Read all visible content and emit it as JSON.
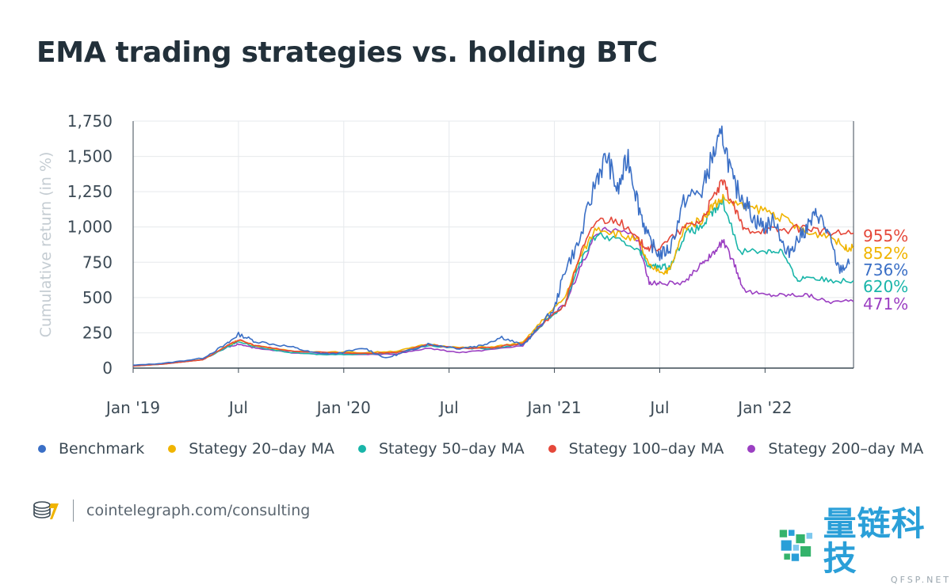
{
  "title": "EMA trading strategies vs. holding BTC",
  "legend": [
    {
      "label": "Benchmark",
      "color": "#3a6fc6"
    },
    {
      "label": "Stategy 20–day MA",
      "color": "#f0b400"
    },
    {
      "label": "Stategy 50–day MA",
      "color": "#19b5a9"
    },
    {
      "label": "Stategy 100–day MA",
      "color": "#e5483a"
    },
    {
      "label": "Stategy 200–day MA",
      "color": "#9b3fc2"
    }
  ],
  "footer": {
    "url": "cointelegraph.com/consulting",
    "logo_icon": "coins-logo-icon"
  },
  "watermark": {
    "cn": "量链科技",
    "en": "QFSP.NET"
  },
  "chart_data": {
    "type": "line",
    "ylabel": "Cumulative return (in %)",
    "xlabel": "",
    "ylim": [
      0,
      1750
    ],
    "xlim": [
      2019.0,
      2022.42
    ],
    "yticks": [
      0,
      250,
      500,
      750,
      1000,
      1250,
      1500,
      1750
    ],
    "ytick_labels": [
      "0",
      "250",
      "500",
      "750",
      "1,000",
      "1,250",
      "1,500",
      "1,750"
    ],
    "xticks": [
      {
        "x": 2019.0,
        "label": "Jan '19"
      },
      {
        "x": 2019.5,
        "label": "Jul"
      },
      {
        "x": 2020.0,
        "label": "Jan '20"
      },
      {
        "x": 2020.5,
        "label": "Jul"
      },
      {
        "x": 2021.0,
        "label": "Jan '21"
      },
      {
        "x": 2021.5,
        "label": "Jul"
      },
      {
        "x": 2022.0,
        "label": "Jan '22"
      }
    ],
    "series": [
      {
        "name": "Benchmark",
        "color": "#3a6fc6",
        "end_label": "736%",
        "x": [
          2019.0,
          2019.15,
          2019.33,
          2019.45,
          2019.5,
          2019.58,
          2019.75,
          2019.85,
          2019.95,
          2020.1,
          2020.2,
          2020.3,
          2020.4,
          2020.55,
          2020.65,
          2020.75,
          2020.85,
          2020.92,
          2021.0,
          2021.05,
          2021.12,
          2021.2,
          2021.25,
          2021.3,
          2021.35,
          2021.4,
          2021.45,
          2021.5,
          2021.55,
          2021.62,
          2021.7,
          2021.75,
          2021.8,
          2021.85,
          2021.9,
          2021.95,
          2022.0,
          2022.05,
          2022.1,
          2022.15,
          2022.2,
          2022.25,
          2022.3,
          2022.35,
          2022.4
        ],
        "y": [
          20,
          35,
          70,
          175,
          240,
          190,
          150,
          110,
          100,
          140,
          70,
          120,
          170,
          140,
          160,
          220,
          160,
          280,
          420,
          700,
          900,
          1350,
          1500,
          1250,
          1500,
          1150,
          900,
          800,
          850,
          1200,
          1250,
          1500,
          1650,
          1300,
          1200,
          1050,
          1000,
          1050,
          800,
          900,
          1000,
          1100,
          950,
          700,
          736
        ]
      },
      {
        "name": "Stategy 20–day MA",
        "color": "#f0b400",
        "end_label": "852%",
        "x": [
          2019.0,
          2019.15,
          2019.33,
          2019.45,
          2019.5,
          2019.58,
          2019.75,
          2019.9,
          2020.1,
          2020.25,
          2020.4,
          2020.55,
          2020.7,
          2020.85,
          2020.95,
          2021.05,
          2021.12,
          2021.2,
          2021.3,
          2021.4,
          2021.45,
          2021.52,
          2021.55,
          2021.62,
          2021.7,
          2021.75,
          2021.8,
          2021.9,
          2022.0,
          2022.1,
          2022.2,
          2022.3,
          2022.38,
          2022.42
        ],
        "y": [
          15,
          30,
          60,
          160,
          200,
          160,
          120,
          115,
          110,
          120,
          170,
          145,
          150,
          180,
          350,
          500,
          780,
          1000,
          950,
          900,
          720,
          680,
          700,
          1000,
          1050,
          1150,
          1200,
          1140,
          1120,
          1050,
          950,
          950,
          852,
          852
        ]
      },
      {
        "name": "Stategy 50–day MA",
        "color": "#19b5a9",
        "end_label": "620%",
        "x": [
          2019.0,
          2019.15,
          2019.33,
          2019.45,
          2019.5,
          2019.58,
          2019.75,
          2019.9,
          2020.1,
          2020.25,
          2020.4,
          2020.55,
          2020.7,
          2020.85,
          2020.95,
          2021.05,
          2021.12,
          2021.2,
          2021.3,
          2021.4,
          2021.45,
          2021.5,
          2021.55,
          2021.62,
          2021.7,
          2021.75,
          2021.8,
          2021.88,
          2022.0,
          2022.08,
          2022.15,
          2022.2,
          2022.3,
          2022.42
        ],
        "y": [
          15,
          30,
          60,
          150,
          190,
          150,
          110,
          95,
          100,
          110,
          160,
          140,
          140,
          170,
          320,
          450,
          750,
          950,
          900,
          850,
          720,
          720,
          720,
          950,
          1000,
          1100,
          1180,
          830,
          830,
          830,
          620,
          650,
          620,
          620
        ]
      },
      {
        "name": "Stategy 100–day MA",
        "color": "#e5483a",
        "end_label": "955%",
        "x": [
          2019.0,
          2019.15,
          2019.33,
          2019.45,
          2019.5,
          2019.58,
          2019.75,
          2019.9,
          2020.1,
          2020.25,
          2020.4,
          2020.55,
          2020.7,
          2020.85,
          2020.95,
          2021.05,
          2021.12,
          2021.2,
          2021.3,
          2021.4,
          2021.45,
          2021.5,
          2021.62,
          2021.7,
          2021.75,
          2021.8,
          2021.85,
          2021.9,
          2022.0,
          2022.1,
          2022.2,
          2022.3,
          2022.42
        ],
        "y": [
          15,
          30,
          60,
          160,
          200,
          160,
          120,
          110,
          105,
          110,
          165,
          140,
          145,
          175,
          320,
          450,
          800,
          1050,
          1050,
          900,
          850,
          850,
          1000,
          1050,
          1200,
          1320,
          1150,
          980,
          980,
          980,
          1000,
          955,
          955
        ]
      },
      {
        "name": "Stategy 200–day MA",
        "color": "#9b3fc2",
        "end_label": "471%",
        "x": [
          2019.0,
          2019.15,
          2019.33,
          2019.45,
          2019.5,
          2019.58,
          2019.75,
          2019.9,
          2020.1,
          2020.25,
          2020.4,
          2020.55,
          2020.7,
          2020.85,
          2020.95,
          2021.05,
          2021.12,
          2021.2,
          2021.3,
          2021.4,
          2021.45,
          2021.5,
          2021.62,
          2021.7,
          2021.75,
          2021.8,
          2021.85,
          2021.9,
          2022.0,
          2022.1,
          2022.2,
          2022.3,
          2022.42
        ],
        "y": [
          15,
          30,
          60,
          150,
          170,
          140,
          110,
          100,
          95,
          100,
          140,
          110,
          130,
          160,
          330,
          450,
          700,
          950,
          1000,
          900,
          600,
          600,
          600,
          750,
          800,
          900,
          750,
          550,
          520,
          520,
          520,
          471,
          471
        ]
      }
    ]
  }
}
